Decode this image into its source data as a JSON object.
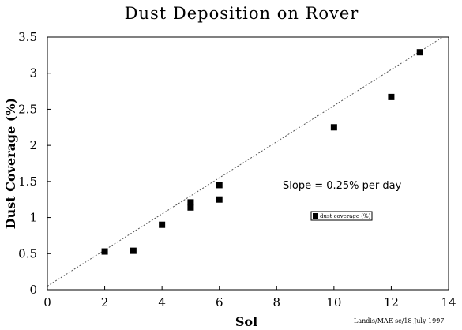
{
  "chart_data": {
    "type": "scatter",
    "title": "Dust Deposition on Rover",
    "xlabel": "Sol",
    "ylabel": "Dust Coverage (%)",
    "xlim": [
      0,
      14
    ],
    "ylim": [
      0,
      3.5
    ],
    "x_ticks": [
      "0",
      "2",
      "4",
      "6",
      "8",
      "10",
      "12",
      "14"
    ],
    "y_ticks": [
      "0",
      "0.5",
      "1",
      "1.5",
      "2",
      "2.5",
      "3",
      "3.5"
    ],
    "grid": false,
    "series": [
      {
        "name": "dust coverage (%)",
        "color": "#000000",
        "marker": "square",
        "points": [
          {
            "x": 2,
            "y": 0.53
          },
          {
            "x": 3,
            "y": 0.54
          },
          {
            "x": 4,
            "y": 0.9
          },
          {
            "x": 5,
            "y": 1.14
          },
          {
            "x": 5,
            "y": 1.21
          },
          {
            "x": 6,
            "y": 1.25
          },
          {
            "x": 6,
            "y": 1.45
          },
          {
            "x": 10,
            "y": 2.25
          },
          {
            "x": 12,
            "y": 2.67
          },
          {
            "x": 13,
            "y": 3.29
          }
        ]
      }
    ],
    "trendline": {
      "style": "dashed",
      "slope": 0.25,
      "intercept": 0.05
    },
    "annotation": "Slope = 0.25% per day",
    "legend": {
      "label": "dust coverage (%)",
      "position": "center-right"
    },
    "credit": "Landis/MAE sc/18 July 1997"
  }
}
